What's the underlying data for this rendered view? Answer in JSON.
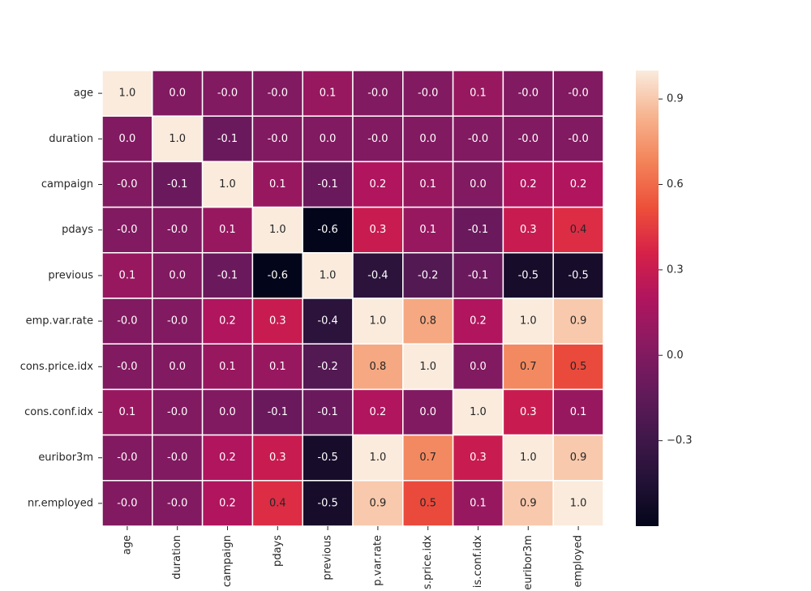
{
  "chart_data": {
    "type": "heatmap",
    "title": "",
    "variables": [
      "age",
      "duration",
      "campaign",
      "pdays",
      "previous",
      "emp.var.rate",
      "cons.price.idx",
      "cons.conf.idx",
      "euribor3m",
      "nr.employed"
    ],
    "x_tick_labels": [
      "age",
      "duration",
      "campaign",
      "pdays",
      "previous",
      "p.var.rate",
      "s.price.idx",
      "is.conf.idx",
      "euribor3m",
      "employed"
    ],
    "matrix": [
      [
        1.0,
        0.0,
        -0.0,
        -0.0,
        0.1,
        -0.0,
        -0.0,
        0.1,
        -0.0,
        -0.0
      ],
      [
        0.0,
        1.0,
        -0.1,
        -0.0,
        0.0,
        -0.0,
        0.0,
        -0.0,
        -0.0,
        -0.0
      ],
      [
        -0.0,
        -0.1,
        1.0,
        0.1,
        -0.1,
        0.2,
        0.1,
        0.0,
        0.2,
        0.2
      ],
      [
        -0.0,
        -0.0,
        0.1,
        1.0,
        -0.6,
        0.3,
        0.1,
        -0.1,
        0.3,
        0.4
      ],
      [
        0.1,
        0.0,
        -0.1,
        -0.6,
        1.0,
        -0.4,
        -0.2,
        -0.1,
        -0.5,
        -0.5
      ],
      [
        -0.0,
        -0.0,
        0.2,
        0.3,
        -0.4,
        1.0,
        0.8,
        0.2,
        1.0,
        0.9
      ],
      [
        -0.0,
        0.0,
        0.1,
        0.1,
        -0.2,
        0.8,
        1.0,
        0.0,
        0.7,
        0.5
      ],
      [
        0.1,
        -0.0,
        0.0,
        -0.1,
        -0.1,
        0.2,
        0.0,
        1.0,
        0.3,
        0.1
      ],
      [
        -0.0,
        -0.0,
        0.2,
        0.3,
        -0.5,
        1.0,
        0.7,
        0.3,
        1.0,
        0.9
      ],
      [
        -0.0,
        -0.0,
        0.2,
        0.4,
        -0.5,
        0.9,
        0.5,
        0.1,
        0.9,
        1.0
      ]
    ],
    "annotation_format": "0.0",
    "colormap": "rocket",
    "vmin": -0.6,
    "vmax": 1.0,
    "colorbar": {
      "ticks": [
        0.9,
        0.6,
        0.3,
        0.0,
        -0.3
      ],
      "tick_labels": [
        "0.9",
        "0.6",
        "0.3",
        "0.0",
        "−0.3"
      ]
    },
    "grid_lines": true,
    "grid_color": "#ffffff"
  }
}
